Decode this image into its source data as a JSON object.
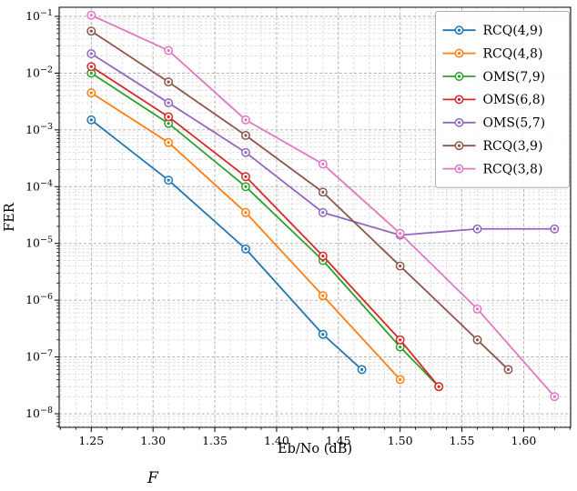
{
  "figure": {
    "caption": "F"
  },
  "chart_data": {
    "type": "line",
    "title": "",
    "xlabel": "Eb/No (dB)",
    "ylabel": "FER",
    "x_scale": "linear",
    "y_scale": "log",
    "xlim": [
      1.224,
      1.638
    ],
    "ylim_exp": [
      -8.24,
      -0.84
    ],
    "xticks": [
      1.25,
      1.3,
      1.35,
      1.4,
      1.45,
      1.5,
      1.55,
      1.6
    ],
    "xtick_labels": [
      "1.25",
      "1.30",
      "1.35",
      "1.40",
      "1.45",
      "1.50",
      "1.55",
      "1.60"
    ],
    "ytick_exponents": [
      -1,
      -2,
      -3,
      -4,
      -5,
      -6,
      -7,
      -8
    ],
    "x_minor_step": 0.0125,
    "grid": {
      "major": true,
      "minor": true,
      "style": "dashed"
    },
    "legend_position": "upper right",
    "marker": "circle-dot",
    "series": [
      {
        "name": "RCQ(4,9)",
        "color": "#1f77b4",
        "x": [
          1.25,
          1.3125,
          1.375,
          1.4375,
          1.469
        ],
        "y": [
          0.0015,
          0.00013,
          8e-06,
          2.5e-07,
          6e-08
        ]
      },
      {
        "name": "RCQ(4,8)",
        "color": "#ff7f0e",
        "x": [
          1.25,
          1.3125,
          1.375,
          1.4375,
          1.5
        ],
        "y": [
          0.0045,
          0.0006,
          3.5e-05,
          1.2e-06,
          4e-08
        ]
      },
      {
        "name": "OMS(7,9)",
        "color": "#2ca02c",
        "x": [
          1.25,
          1.3125,
          1.375,
          1.4375,
          1.5,
          1.5313
        ],
        "y": [
          0.01,
          0.0013,
          0.0001,
          5e-06,
          1.5e-07,
          3e-08
        ]
      },
      {
        "name": "OMS(6,8)",
        "color": "#d62728",
        "x": [
          1.25,
          1.3125,
          1.375,
          1.4375,
          1.5,
          1.5313
        ],
        "y": [
          0.013,
          0.0017,
          0.00015,
          6e-06,
          2e-07,
          3e-08
        ]
      },
      {
        "name": "OMS(5,7)",
        "color": "#9467bd",
        "x": [
          1.25,
          1.3125,
          1.375,
          1.4375,
          1.5,
          1.5625,
          1.625
        ],
        "y": [
          0.022,
          0.003,
          0.0004,
          3.5e-05,
          1.4e-05,
          1.8e-05,
          1.8e-05
        ]
      },
      {
        "name": "RCQ(3,9)",
        "color": "#8c564b",
        "x": [
          1.25,
          1.3125,
          1.375,
          1.4375,
          1.5,
          1.5625,
          1.5875
        ],
        "y": [
          0.055,
          0.007,
          0.0008,
          8e-05,
          4e-06,
          2e-07,
          6e-08
        ]
      },
      {
        "name": "RCQ(3,8)",
        "color": "#e377c2",
        "x": [
          1.25,
          1.3125,
          1.375,
          1.4375,
          1.5,
          1.5625,
          1.625
        ],
        "y": [
          0.105,
          0.025,
          0.0015,
          0.00025,
          1.5e-05,
          7e-07,
          2e-08
        ]
      }
    ]
  }
}
